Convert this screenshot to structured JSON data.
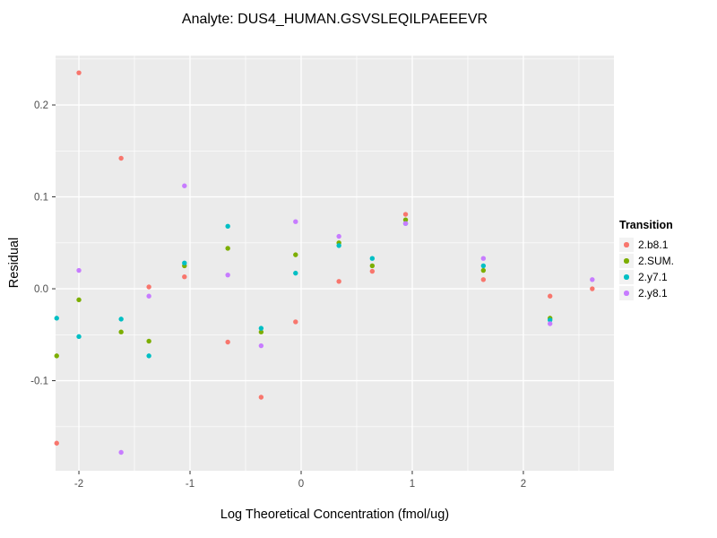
{
  "chart_data": {
    "type": "scatter",
    "title": "Analyte: DUS4_HUMAN.GSVSLEQILPAEEEVR",
    "xlabel": "Log Theoretical Concentration (fmol/ug)",
    "ylabel": "Residual",
    "legend_title": "Transition",
    "legend_position": "right",
    "grid": true,
    "panel_bg": "#EBEBEB",
    "grid_color": "#FFFFFF",
    "tick_text_color": "#4D4D4D",
    "tick_mark_color": "#333333",
    "xlim": [
      -2.21,
      2.815
    ],
    "ylim": [
      -0.198,
      0.2537
    ],
    "x_major_ticks": [
      -2,
      -1,
      0,
      1,
      2
    ],
    "x_tick_labels": [
      "-2",
      "-1",
      "0",
      "1",
      "2"
    ],
    "x_minor_ticks": [
      -1.5,
      -0.5,
      0.5,
      1.5,
      2.5
    ],
    "y_major_ticks": [
      -0.1,
      0.0,
      0.1,
      0.2
    ],
    "y_tick_labels": [
      "-0.1",
      "0.0",
      "0.1",
      "0.2"
    ],
    "y_minor_ticks": [
      -0.15,
      -0.05,
      0.05,
      0.15,
      0.25
    ],
    "series": [
      {
        "name": "2.b8.1",
        "color": "#F8766D",
        "points": [
          [
            -2.2,
            -0.168
          ],
          [
            -2.0,
            0.235
          ],
          [
            -1.62,
            0.142
          ],
          [
            -1.37,
            0.002
          ],
          [
            -1.05,
            0.013
          ],
          [
            -0.66,
            -0.058
          ],
          [
            -0.36,
            -0.118
          ],
          [
            -0.05,
            -0.036
          ],
          [
            0.34,
            0.008
          ],
          [
            0.64,
            0.019
          ],
          [
            0.94,
            0.081
          ],
          [
            1.64,
            0.01
          ],
          [
            2.24,
            -0.008
          ],
          [
            2.62,
            0.0
          ]
        ]
      },
      {
        "name": "2.SUM.",
        "color": "#7CAE00",
        "points": [
          [
            -2.2,
            -0.073
          ],
          [
            -2.0,
            -0.012
          ],
          [
            -1.62,
            -0.047
          ],
          [
            -1.37,
            -0.057
          ],
          [
            -1.05,
            0.025
          ],
          [
            -0.66,
            0.044
          ],
          [
            -0.36,
            -0.047
          ],
          [
            -0.05,
            0.037
          ],
          [
            0.34,
            0.05
          ],
          [
            0.64,
            0.025
          ],
          [
            0.94,
            0.075
          ],
          [
            1.64,
            0.02
          ],
          [
            2.24,
            -0.032
          ]
        ]
      },
      {
        "name": "2.y7.1",
        "color": "#00BFC4",
        "points": [
          [
            -2.2,
            -0.032
          ],
          [
            -2.0,
            -0.052
          ],
          [
            -1.62,
            -0.033
          ],
          [
            -1.37,
            -0.073
          ],
          [
            -1.05,
            0.028
          ],
          [
            -0.66,
            0.068
          ],
          [
            -0.36,
            -0.043
          ],
          [
            -0.05,
            0.017
          ],
          [
            0.34,
            0.047
          ],
          [
            0.64,
            0.033
          ],
          [
            0.94,
            0.071
          ],
          [
            1.64,
            0.025
          ],
          [
            2.24,
            -0.034
          ]
        ]
      },
      {
        "name": "2.y8.1",
        "color": "#C77CFF",
        "points": [
          [
            -2.0,
            0.02
          ],
          [
            -1.62,
            -0.178
          ],
          [
            -1.37,
            -0.008
          ],
          [
            -1.05,
            0.112
          ],
          [
            -0.66,
            0.015
          ],
          [
            -0.36,
            -0.062
          ],
          [
            -0.05,
            0.073
          ],
          [
            0.34,
            0.057
          ],
          [
            0.94,
            0.071
          ],
          [
            1.64,
            0.033
          ],
          [
            2.24,
            -0.038
          ],
          [
            2.62,
            0.01
          ]
        ]
      }
    ]
  }
}
